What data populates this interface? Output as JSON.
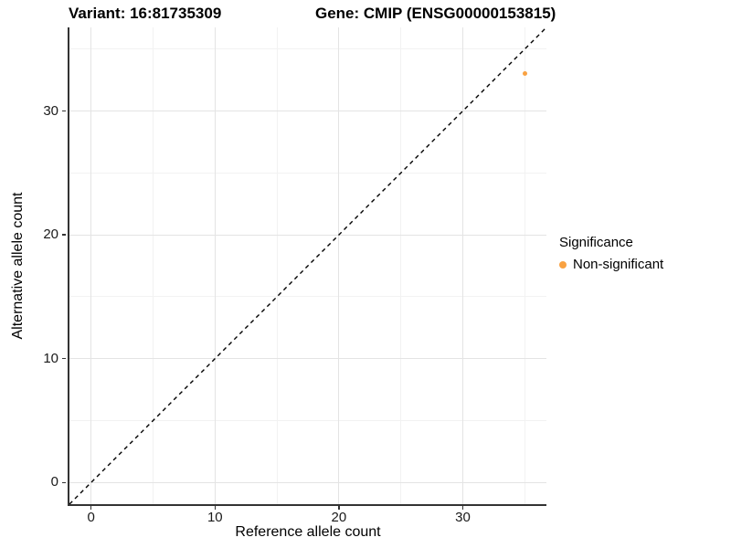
{
  "chart_data": {
    "type": "scatter",
    "title_left": "Variant: 16:81735309",
    "title_right": "Gene: CMIP (ENSG00000153815)",
    "xlabel": "Reference allele count",
    "ylabel": "Alternative allele count",
    "xlim": [
      -1.75,
      36.75
    ],
    "ylim": [
      -1.75,
      36.75
    ],
    "x_ticks": [
      0,
      10,
      20,
      30
    ],
    "y_ticks": [
      0,
      10,
      20,
      30
    ],
    "x_minor_ticks": [
      5,
      15,
      25,
      35
    ],
    "y_minor_ticks": [
      5,
      15,
      25,
      35
    ],
    "grid": true,
    "points": [
      {
        "x": 35,
        "y": 33,
        "series": "Non-significant"
      }
    ],
    "reference_line": {
      "type": "identity",
      "slope": 1,
      "intercept": 0,
      "style": "dashed",
      "color": "#000000"
    },
    "legend": {
      "title": "Significance",
      "position": "right",
      "items": [
        {
          "label": "Non-significant",
          "color": "#F9A242"
        }
      ]
    }
  },
  "colors": {
    "point": "#F9A242",
    "grid_major": "#e4e4e4",
    "grid_minor": "#f2f2f2",
    "axis_line": "#333333",
    "tick_text": "#1a1a1a"
  }
}
